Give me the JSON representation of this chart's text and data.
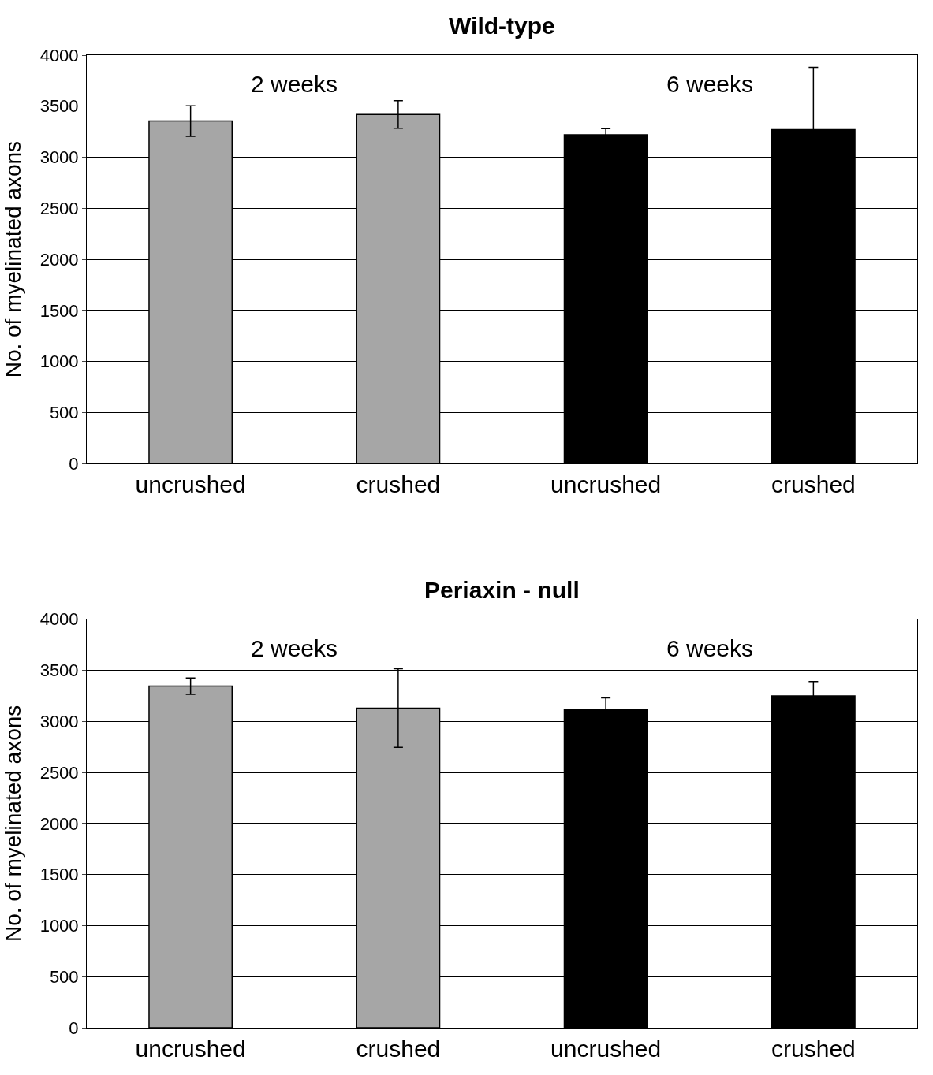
{
  "chart_data": [
    {
      "type": "bar",
      "title": "Wild-type",
      "ylabel": "No. of myelinated axons",
      "categories": [
        "uncrushed",
        "crushed",
        "uncrushed",
        "crushed"
      ],
      "values": [
        3355,
        3420,
        3220,
        3270
      ],
      "errors": [
        150,
        135,
        60,
        610
      ],
      "colors": [
        "#a6a6a6",
        "#a6a6a6",
        "#000000",
        "#000000"
      ],
      "ylim": [
        0,
        4000
      ],
      "yticks": [
        0,
        500,
        1000,
        1500,
        2000,
        2500,
        3000,
        3500,
        4000
      ],
      "grid": "y",
      "annotations": [
        "2 weeks",
        "6 weeks"
      ]
    },
    {
      "type": "bar",
      "title": "Periaxin - null",
      "ylabel": "No. of myelinated axons",
      "categories": [
        "uncrushed",
        "crushed",
        "uncrushed",
        "crushed"
      ],
      "values": [
        3345,
        3130,
        3115,
        3250
      ],
      "errors": [
        80,
        385,
        115,
        140
      ],
      "colors": [
        "#a6a6a6",
        "#a6a6a6",
        "#000000",
        "#000000"
      ],
      "ylim": [
        0,
        4000
      ],
      "yticks": [
        0,
        500,
        1000,
        1500,
        2000,
        2500,
        3000,
        3500,
        4000
      ],
      "grid": "y",
      "annotations": [
        "2 weeks",
        "6 weeks"
      ]
    }
  ]
}
